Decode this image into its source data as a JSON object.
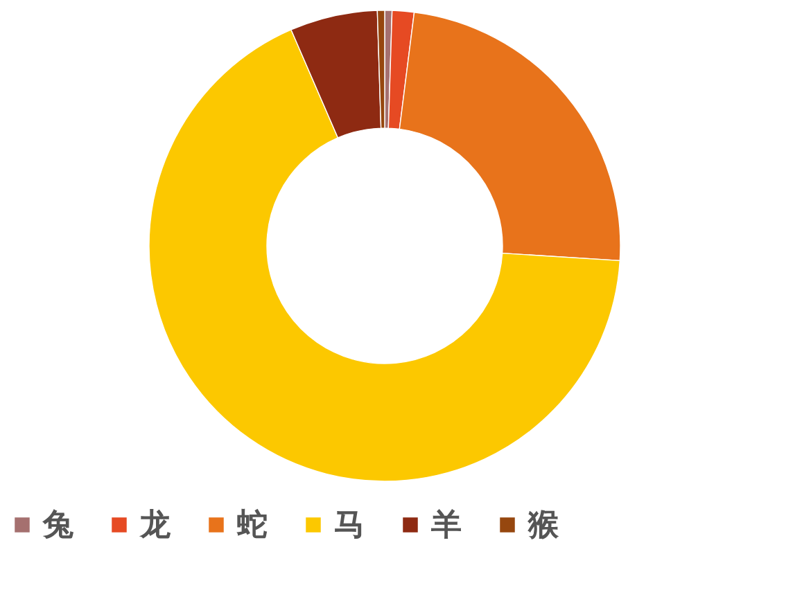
{
  "chart_data": {
    "type": "donut",
    "categories": [
      "兔",
      "龙",
      "蛇",
      "马",
      "羊",
      "猴"
    ],
    "values": [
      0.5,
      1.5,
      24,
      67.5,
      6,
      0.5
    ],
    "colors": [
      "#a5706f",
      "#e64a23",
      "#e8731b",
      "#fcc800",
      "#8e2a12",
      "#96470f"
    ],
    "legend": "bottom"
  }
}
